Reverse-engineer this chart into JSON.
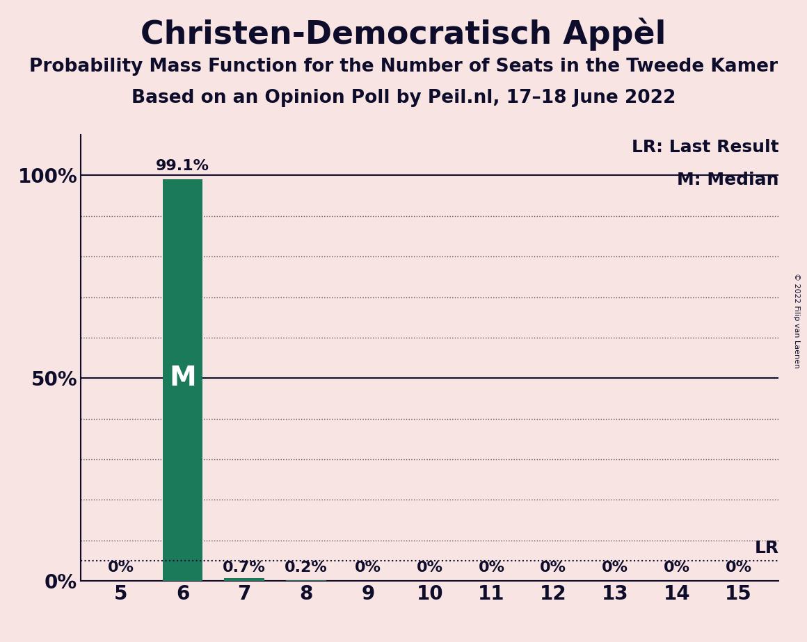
{
  "title": "Christen-Democratisch Appèl",
  "subtitle1": "Probability Mass Function for the Number of Seats in the Tweede Kamer",
  "subtitle2": "Based on an Opinion Poll by Peil.nl, 17–18 June 2022",
  "copyright": "© 2022 Filip van Laenen",
  "x_values": [
    5,
    6,
    7,
    8,
    9,
    10,
    11,
    12,
    13,
    14,
    15
  ],
  "y_values": [
    0.0,
    99.1,
    0.7,
    0.2,
    0.0,
    0.0,
    0.0,
    0.0,
    0.0,
    0.0,
    0.0
  ],
  "bar_color": "#1a7a5a",
  "bg_color": "#f9e4e4",
  "text_color": "#0d0d2b",
  "median_seat": 6,
  "median_label": "M",
  "LR_value": 5.0,
  "legend_LR": "LR: Last Result",
  "legend_M": "M: Median",
  "LR_label": "LR",
  "bar_labels": [
    "0%",
    "99.1%",
    "0.7%",
    "0.2%",
    "0%",
    "0%",
    "0%",
    "0%",
    "0%",
    "0%",
    "0%"
  ],
  "yticks": [
    0,
    50,
    100
  ],
  "ytick_labels": [
    "0%",
    "50%",
    "100%"
  ],
  "ylim": [
    0,
    110
  ],
  "title_fontsize": 33,
  "subtitle_fontsize": 19,
  "tick_fontsize": 20,
  "bar_label_fontsize": 16,
  "legend_fontsize": 18,
  "bar_width": 0.65
}
